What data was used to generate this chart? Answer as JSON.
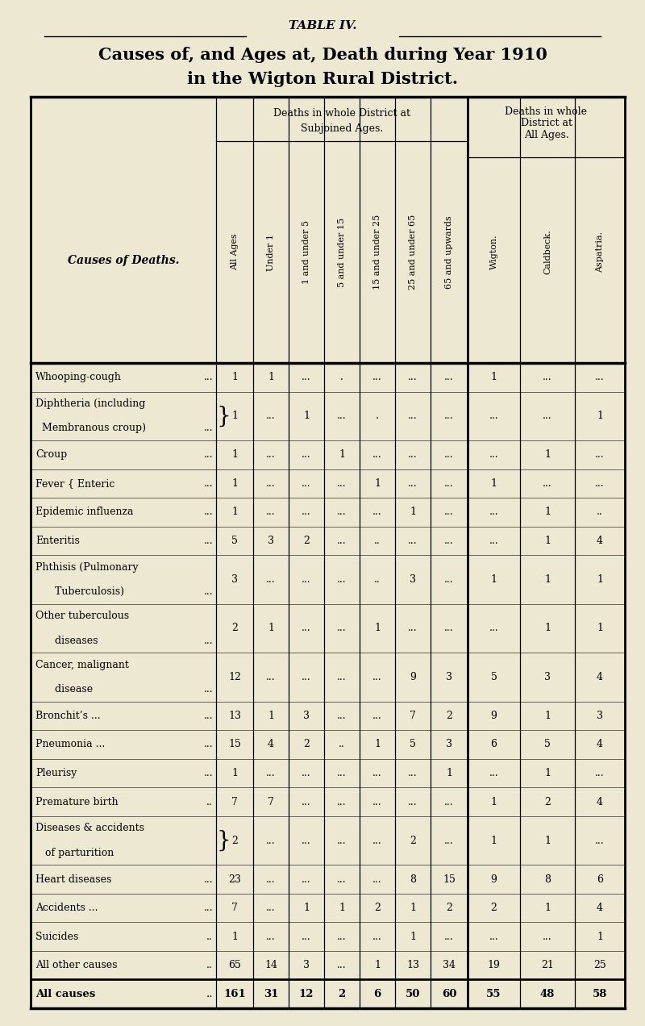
{
  "bg_color": "#ede8d2",
  "title1": "TABLE IV.",
  "title2": "Causes of, and Ages at, Death during Year 1910",
  "title3": "in the Wigton Rural District.",
  "col_headers_age": [
    "All Ages",
    "Under 1",
    "1 and under 5",
    "5 and under 15",
    "15 and under 25",
    "25 and under 65",
    "65 and upwards"
  ],
  "col_headers_dist": [
    "Wigton.",
    "Caldbeck.",
    "Aspatria."
  ],
  "rows": [
    {
      "cause1": "Whooping-cough",
      "cause2": "",
      "dots": "...",
      "bracket": "",
      "data": [
        "1",
        "1",
        "...",
        ".",
        "...",
        "...",
        "...",
        "1",
        "...",
        "..."
      ]
    },
    {
      "cause1": "Diphtheria (including",
      "cause2": "  Membranous croup)",
      "dots": "...",
      "bracket": "}",
      "data": [
        "1",
        "...",
        "1",
        "...",
        ".",
        "...",
        "...",
        "...",
        "...",
        "1"
      ]
    },
    {
      "cause1": "Croup",
      "cause2": "",
      "dots": "...",
      "bracket": "",
      "data": [
        "1",
        "...",
        "...",
        "1",
        "...",
        "...",
        "...",
        "...",
        "1",
        "..."
      ]
    },
    {
      "cause1": "Fever { Enteric",
      "cause2": "",
      "dots": "...",
      "bracket": "",
      "data": [
        "1",
        "...",
        "...",
        "...",
        "1",
        "...",
        "...",
        "1",
        "...",
        "..."
      ]
    },
    {
      "cause1": "Epidemic influenza",
      "cause2": "",
      "dots": "...",
      "bracket": "",
      "data": [
        "1",
        "...",
        "...",
        "...",
        "...",
        "1",
        "...",
        "...",
        "1",
        ".."
      ]
    },
    {
      "cause1": "Enteritis",
      "cause2": "",
      "dots": "...",
      "bracket": "",
      "data": [
        "5",
        "3",
        "2",
        "...",
        "..",
        "...",
        "...",
        "...",
        "1",
        "4"
      ]
    },
    {
      "cause1": "Phthisis (Pulmonary",
      "cause2": "      Tuberculosis)",
      "dots": "...",
      "bracket": "",
      "data": [
        "3",
        "...",
        "...",
        "...",
        "..",
        "3",
        "...",
        "1",
        "1",
        "1"
      ]
    },
    {
      "cause1": "Other tuberculous",
      "cause2": "      diseases",
      "dots": "...",
      "bracket": "",
      "data": [
        "2",
        "1",
        "...",
        "...",
        "1",
        "...",
        "...",
        "...",
        "1",
        "1"
      ]
    },
    {
      "cause1": "Cancer, malignant",
      "cause2": "      disease",
      "dots": "...",
      "bracket": "",
      "data": [
        "12",
        "...",
        "...",
        "...",
        "...",
        "9",
        "3",
        "5",
        "3",
        "4"
      ]
    },
    {
      "cause1": "Bronchit’s ...",
      "cause2": "",
      "dots": "...",
      "bracket": "",
      "data": [
        "13",
        "1",
        "3",
        "...",
        "...",
        "7",
        "2",
        "9",
        "1",
        "3"
      ]
    },
    {
      "cause1": "Pneumonia ...",
      "cause2": "",
      "dots": "...",
      "bracket": "",
      "data": [
        "15",
        "4",
        "2",
        "..",
        "1",
        "5",
        "3",
        "6",
        "5",
        "4"
      ]
    },
    {
      "cause1": "Pleurisy",
      "cause2": "",
      "dots": "...",
      "bracket": "",
      "data": [
        "1",
        "...",
        "...",
        "...",
        "...",
        "...",
        "1",
        "...",
        "1",
        "..."
      ]
    },
    {
      "cause1": "Premature birth",
      "cause2": "",
      "dots": "..",
      "bracket": "",
      "data": [
        "7",
        "7",
        "...",
        "...",
        "...",
        "...",
        "...",
        "1",
        "2",
        "4"
      ]
    },
    {
      "cause1": "Diseases & accidents",
      "cause2": "   of parturition",
      "dots": "",
      "bracket": "}",
      "data": [
        "2",
        "...",
        "...",
        "...",
        "...",
        "2",
        "...",
        "1",
        "1",
        "..."
      ]
    },
    {
      "cause1": "Heart diseases",
      "cause2": "",
      "dots": "...",
      "bracket": "",
      "data": [
        "23",
        "...",
        "...",
        "...",
        "...",
        "8",
        "15",
        "9",
        "8",
        "6"
      ]
    },
    {
      "cause1": "Accidents ...",
      "cause2": "",
      "dots": "...",
      "bracket": "",
      "data": [
        "7",
        "...",
        "1",
        "1",
        "2",
        "1",
        "2",
        "2",
        "1",
        "4"
      ]
    },
    {
      "cause1": "Suicides",
      "cause2": "",
      "dots": "..",
      "bracket": "",
      "data": [
        "1",
        "...",
        "...",
        "...",
        "...",
        "1",
        "...",
        "...",
        "...",
        "1"
      ]
    },
    {
      "cause1": "All other causes",
      "cause2": "",
      "dots": "..",
      "bracket": "",
      "data": [
        "65",
        "14",
        "3",
        "...",
        "1",
        "13",
        "34",
        "19",
        "21",
        "25"
      ]
    },
    {
      "cause1": "All causes",
      "cause2": "",
      "dots": "..",
      "bracket": "",
      "data": [
        "161",
        "31",
        "12",
        "2",
        "6",
        "50",
        "60",
        "55",
        "48",
        "58"
      ]
    }
  ]
}
